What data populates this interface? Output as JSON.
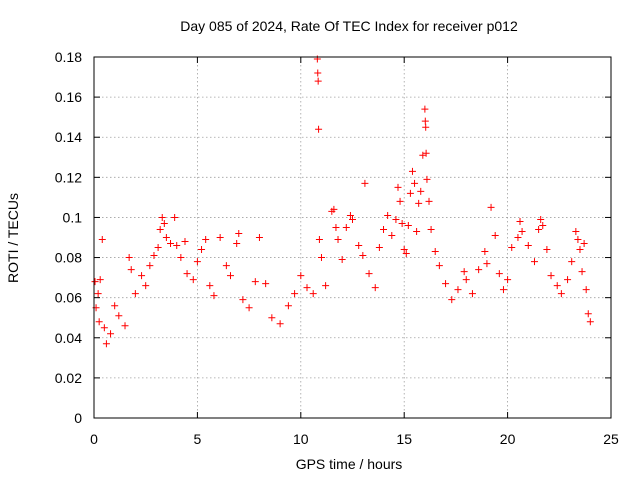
{
  "chart_data": {
    "type": "scatter",
    "title": "Day 085 of 2024, Rate Of TEC Index for receiver p012",
    "xlabel": "GPS time / hours",
    "ylabel": "ROTI / TECUs",
    "xlim": [
      0,
      25
    ],
    "ylim": [
      0,
      0.18
    ],
    "xticks": [
      0,
      5,
      10,
      15,
      20,
      25
    ],
    "yticks": [
      0,
      0.02,
      0.04,
      0.06,
      0.08,
      0.1,
      0.12,
      0.14,
      0.16,
      0.18
    ],
    "xtick_labels": [
      "0",
      "5",
      "10",
      "15",
      "20",
      "25"
    ],
    "ytick_labels": [
      "0",
      "0.02",
      "0.04",
      "0.06",
      "0.08",
      "0.1",
      "0.12",
      "0.14",
      "0.16",
      "0.18"
    ],
    "grid": true,
    "marker": "+",
    "color": "#ff0000",
    "series": [
      {
        "points": [
          [
            0.05,
            0.068
          ],
          [
            0.1,
            0.055
          ],
          [
            0.2,
            0.062
          ],
          [
            0.25,
            0.048
          ],
          [
            0.3,
            0.069
          ],
          [
            0.4,
            0.089
          ],
          [
            0.5,
            0.045
          ],
          [
            0.6,
            0.037
          ],
          [
            0.8,
            0.042
          ],
          [
            1.0,
            0.056
          ],
          [
            1.2,
            0.051
          ],
          [
            1.5,
            0.046
          ],
          [
            1.7,
            0.08
          ],
          [
            1.8,
            0.074
          ],
          [
            2.0,
            0.062
          ],
          [
            2.3,
            0.071
          ],
          [
            2.5,
            0.066
          ],
          [
            2.7,
            0.076
          ],
          [
            2.9,
            0.081
          ],
          [
            3.1,
            0.085
          ],
          [
            3.2,
            0.094
          ],
          [
            3.3,
            0.1
          ],
          [
            3.4,
            0.097
          ],
          [
            3.5,
            0.09
          ],
          [
            3.7,
            0.087
          ],
          [
            3.9,
            0.1
          ],
          [
            4.0,
            0.086
          ],
          [
            4.2,
            0.08
          ],
          [
            4.4,
            0.088
          ],
          [
            4.5,
            0.072
          ],
          [
            4.8,
            0.069
          ],
          [
            5.0,
            0.078
          ],
          [
            5.2,
            0.084
          ],
          [
            5.4,
            0.089
          ],
          [
            5.6,
            0.066
          ],
          [
            5.8,
            0.061
          ],
          [
            6.1,
            0.09
          ],
          [
            6.4,
            0.076
          ],
          [
            6.6,
            0.071
          ],
          [
            6.9,
            0.087
          ],
          [
            7.0,
            0.092
          ],
          [
            7.2,
            0.059
          ],
          [
            7.5,
            0.055
          ],
          [
            7.8,
            0.068
          ],
          [
            8.0,
            0.09
          ],
          [
            8.3,
            0.067
          ],
          [
            8.6,
            0.05
          ],
          [
            9.0,
            0.047
          ],
          [
            9.4,
            0.056
          ],
          [
            9.7,
            0.062
          ],
          [
            10.0,
            0.071
          ],
          [
            10.3,
            0.065
          ],
          [
            10.6,
            0.062
          ],
          [
            10.8,
            0.179
          ],
          [
            10.82,
            0.172
          ],
          [
            10.84,
            0.168
          ],
          [
            10.86,
            0.144
          ],
          [
            10.9,
            0.089
          ],
          [
            11.0,
            0.08
          ],
          [
            11.2,
            0.066
          ],
          [
            11.5,
            0.103
          ],
          [
            11.6,
            0.104
          ],
          [
            11.7,
            0.095
          ],
          [
            11.8,
            0.089
          ],
          [
            12.0,
            0.079
          ],
          [
            12.2,
            0.095
          ],
          [
            12.4,
            0.101
          ],
          [
            12.5,
            0.099
          ],
          [
            12.8,
            0.086
          ],
          [
            13.0,
            0.081
          ],
          [
            13.1,
            0.117
          ],
          [
            13.3,
            0.072
          ],
          [
            13.6,
            0.065
          ],
          [
            13.8,
            0.085
          ],
          [
            14.0,
            0.094
          ],
          [
            14.2,
            0.101
          ],
          [
            14.4,
            0.091
          ],
          [
            14.6,
            0.099
          ],
          [
            14.7,
            0.115
          ],
          [
            14.8,
            0.108
          ],
          [
            14.9,
            0.097
          ],
          [
            15.0,
            0.084
          ],
          [
            15.1,
            0.082
          ],
          [
            15.2,
            0.096
          ],
          [
            15.3,
            0.112
          ],
          [
            15.4,
            0.123
          ],
          [
            15.5,
            0.117
          ],
          [
            15.6,
            0.093
          ],
          [
            15.7,
            0.107
          ],
          [
            15.8,
            0.113
          ],
          [
            15.9,
            0.131
          ],
          [
            16.0,
            0.154
          ],
          [
            16.02,
            0.148
          ],
          [
            16.04,
            0.145
          ],
          [
            16.06,
            0.132
          ],
          [
            16.1,
            0.119
          ],
          [
            16.2,
            0.108
          ],
          [
            16.3,
            0.094
          ],
          [
            16.5,
            0.083
          ],
          [
            16.7,
            0.076
          ],
          [
            17.0,
            0.067
          ],
          [
            17.3,
            0.059
          ],
          [
            17.6,
            0.064
          ],
          [
            17.9,
            0.073
          ],
          [
            18.0,
            0.069
          ],
          [
            18.3,
            0.062
          ],
          [
            18.6,
            0.074
          ],
          [
            18.9,
            0.083
          ],
          [
            19.0,
            0.077
          ],
          [
            19.2,
            0.105
          ],
          [
            19.4,
            0.091
          ],
          [
            19.6,
            0.072
          ],
          [
            19.8,
            0.064
          ],
          [
            20.0,
            0.069
          ],
          [
            20.2,
            0.085
          ],
          [
            20.5,
            0.09
          ],
          [
            20.6,
            0.098
          ],
          [
            20.7,
            0.093
          ],
          [
            21.0,
            0.086
          ],
          [
            21.3,
            0.078
          ],
          [
            21.5,
            0.094
          ],
          [
            21.6,
            0.099
          ],
          [
            21.7,
            0.096
          ],
          [
            21.9,
            0.084
          ],
          [
            22.1,
            0.071
          ],
          [
            22.4,
            0.066
          ],
          [
            22.6,
            0.062
          ],
          [
            22.9,
            0.069
          ],
          [
            23.1,
            0.078
          ],
          [
            23.3,
            0.093
          ],
          [
            23.4,
            0.089
          ],
          [
            23.5,
            0.084
          ],
          [
            23.6,
            0.073
          ],
          [
            23.7,
            0.087
          ],
          [
            23.8,
            0.064
          ],
          [
            23.9,
            0.052
          ],
          [
            24.0,
            0.048
          ]
        ]
      }
    ]
  }
}
